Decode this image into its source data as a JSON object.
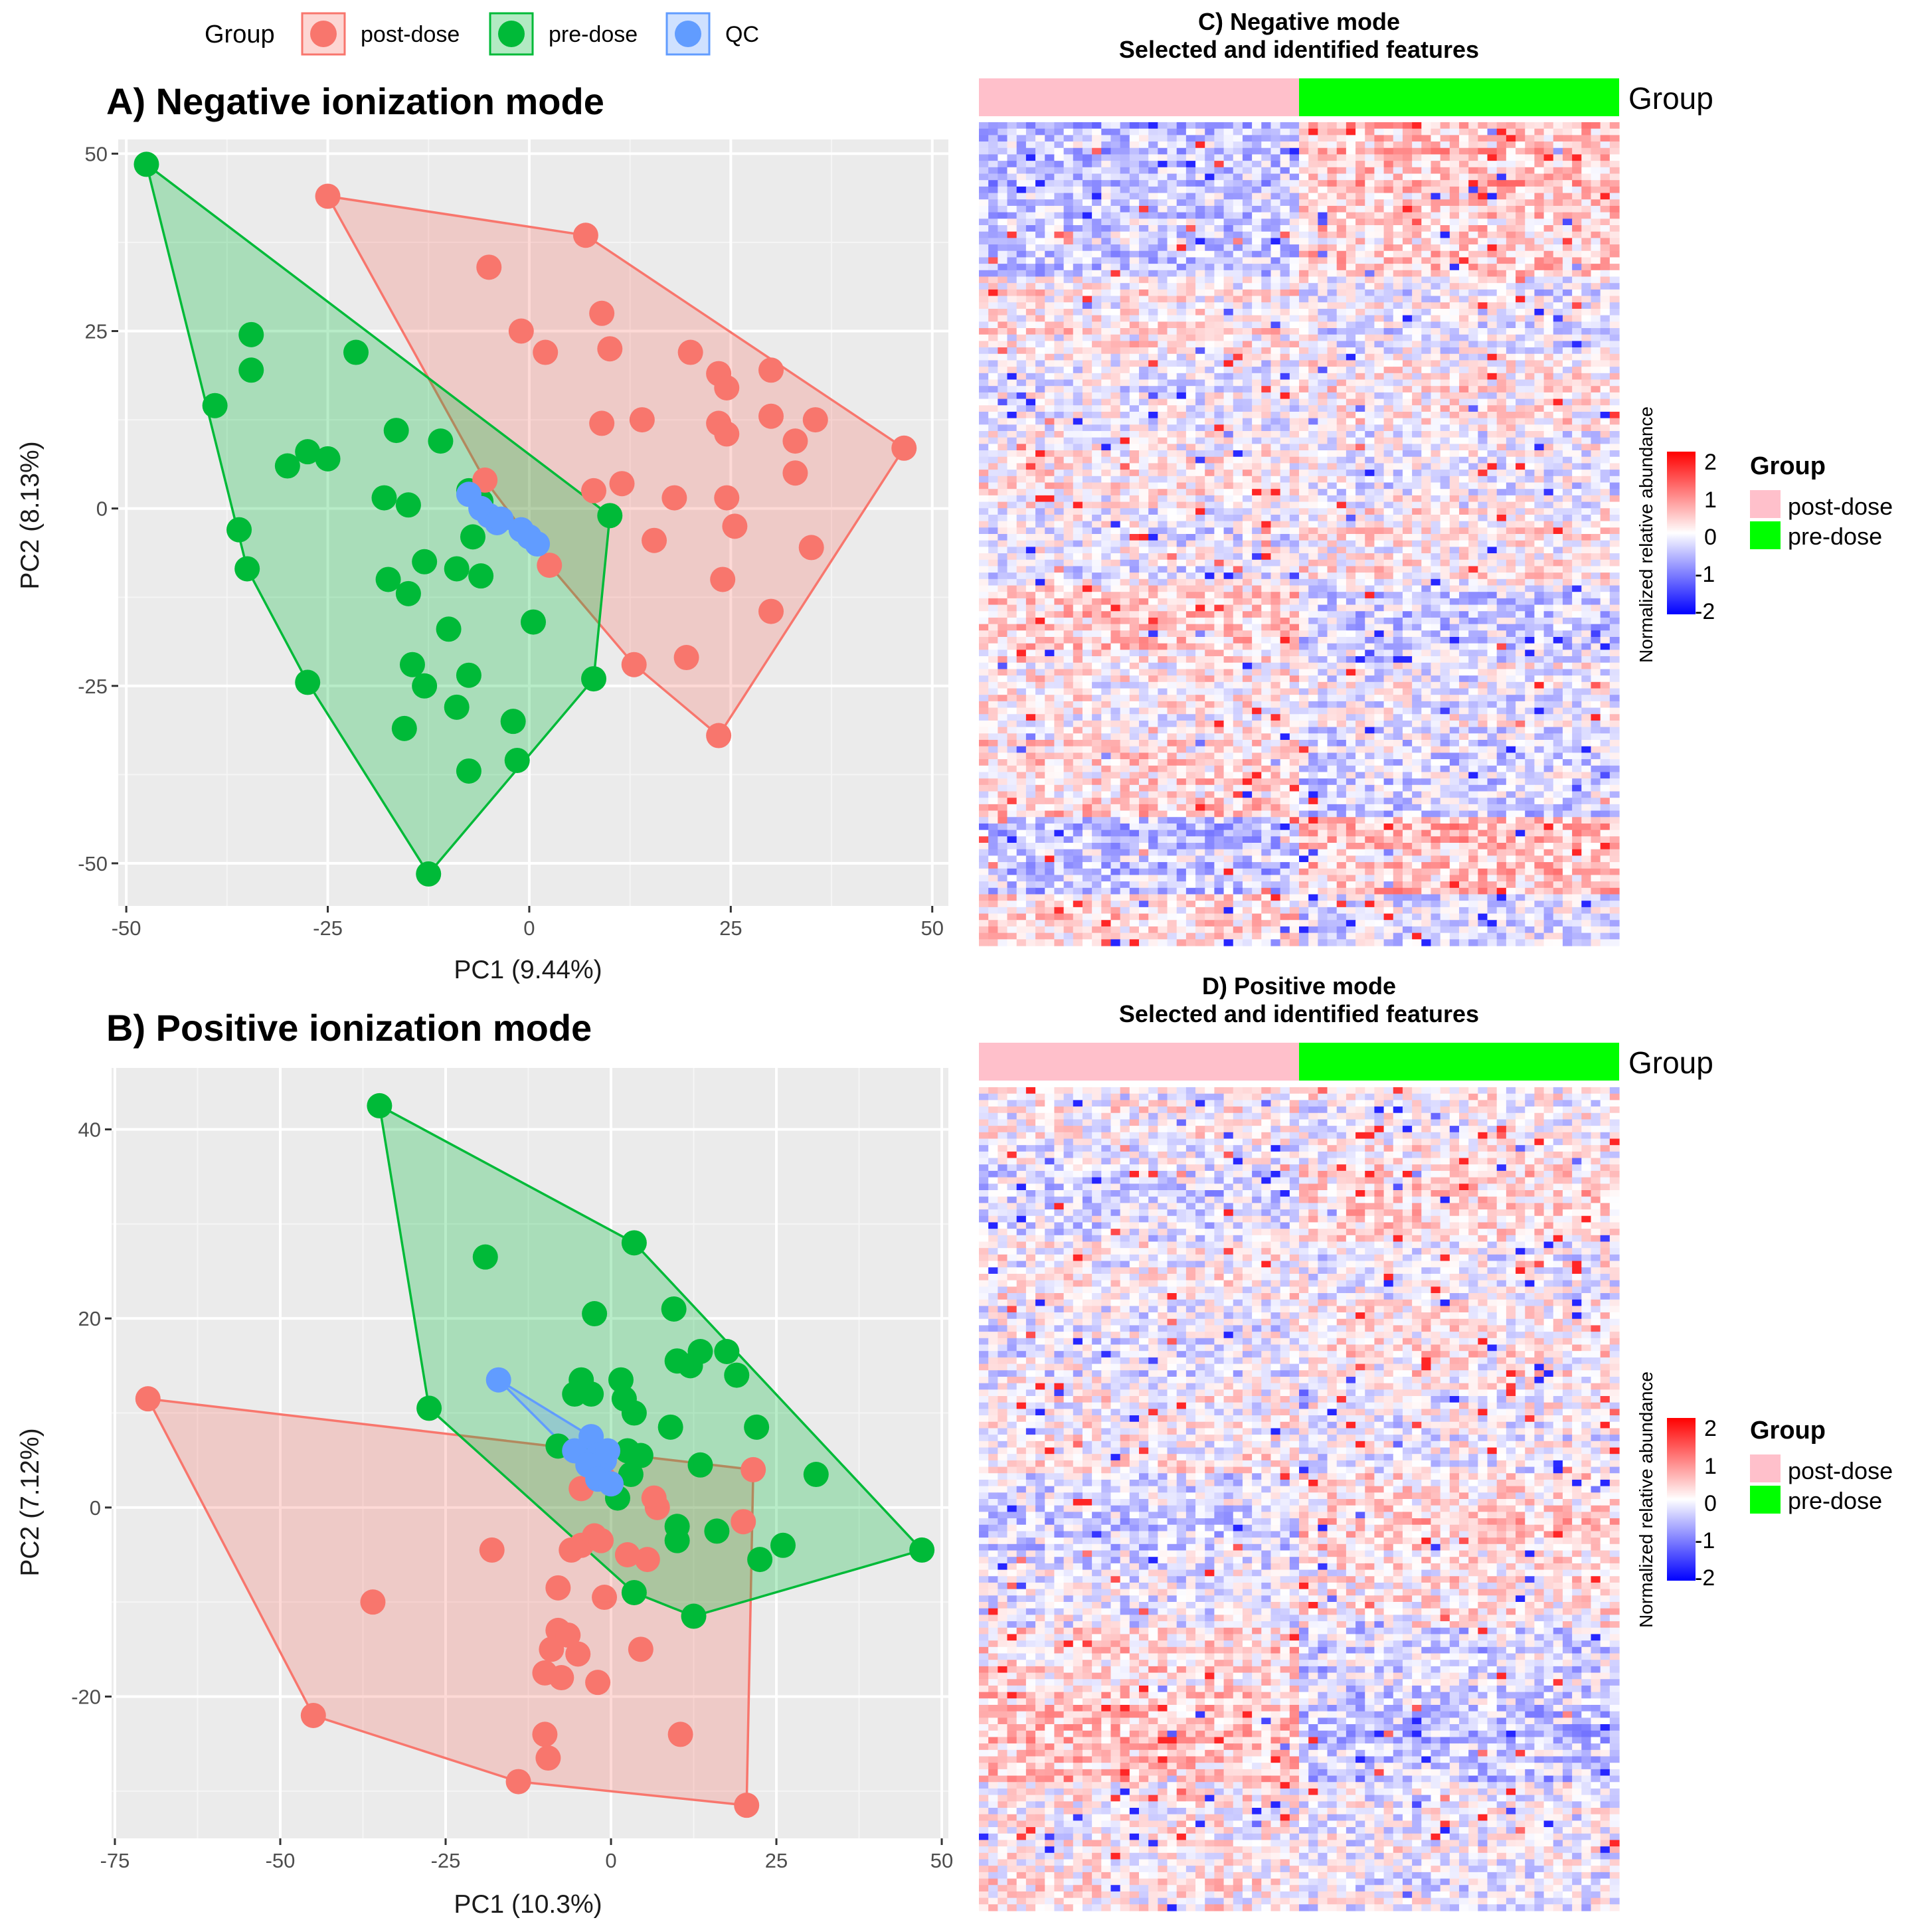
{
  "legend": {
    "title": "Group",
    "items": [
      {
        "label": "post-dose",
        "color": "#F8766D"
      },
      {
        "label": "pre-dose",
        "color": "#00BA38"
      },
      {
        "label": "QC",
        "color": "#619CFF"
      }
    ]
  },
  "chart_data": [
    {
      "id": "A",
      "type": "scatter",
      "title": "A) Negative ionization mode",
      "xlabel": "PC1 (9.44%)",
      "ylabel": "PC2 (8.13%)",
      "xlim": [
        -51,
        52
      ],
      "ylim": [
        -56,
        52
      ],
      "xticks": [
        -50,
        -25,
        0,
        25,
        50
      ],
      "xtick_labels": [
        "-50",
        "-25",
        "0",
        "25",
        "50"
      ],
      "yticks": [
        -50,
        -25,
        0,
        25,
        50
      ],
      "ytick_labels": [
        "-50",
        "-25",
        "0",
        "25",
        "50"
      ],
      "hulls": true,
      "series": [
        {
          "name": "post-dose",
          "color": "#F8766D",
          "points": [
            [
              -25,
              44
            ],
            [
              7,
              38.5
            ],
            [
              -5,
              34
            ],
            [
              9,
              27.5
            ],
            [
              -1,
              25
            ],
            [
              10,
              22.5
            ],
            [
              2,
              22
            ],
            [
              20,
              22
            ],
            [
              23.5,
              19
            ],
            [
              30,
              19.5
            ],
            [
              24.5,
              17
            ],
            [
              14,
              12.5
            ],
            [
              9,
              12
            ],
            [
              23.5,
              12
            ],
            [
              30,
              13
            ],
            [
              35.5,
              12.5
            ],
            [
              24.5,
              10.5
            ],
            [
              33,
              9.5
            ],
            [
              46.5,
              8.5
            ],
            [
              33,
              5
            ],
            [
              11.5,
              3.5
            ],
            [
              8,
              2.5
            ],
            [
              18,
              1.5
            ],
            [
              24.5,
              1.5
            ],
            [
              25.5,
              -2.5
            ],
            [
              -5.5,
              4
            ],
            [
              15.5,
              -4.5
            ],
            [
              35,
              -5.5
            ],
            [
              2.5,
              -8
            ],
            [
              24,
              -10
            ],
            [
              30,
              -14.5
            ],
            [
              13,
              -22
            ],
            [
              19.5,
              -21
            ],
            [
              23.5,
              -32
            ]
          ]
        },
        {
          "name": "pre-dose",
          "color": "#00BA38",
          "points": [
            [
              -47.5,
              48.5
            ],
            [
              -34.5,
              24.5
            ],
            [
              -34.5,
              19.5
            ],
            [
              -21.5,
              22
            ],
            [
              -39,
              14.5
            ],
            [
              -16.5,
              11
            ],
            [
              -11,
              9.5
            ],
            [
              -27.5,
              8
            ],
            [
              -25,
              7
            ],
            [
              -30,
              6
            ],
            [
              -18,
              1.5
            ],
            [
              -15,
              0.5
            ],
            [
              -7.5,
              2.5
            ],
            [
              -6,
              1
            ],
            [
              -36,
              -3
            ],
            [
              -7,
              -4
            ],
            [
              -35,
              -8.5
            ],
            [
              -13,
              -7.5
            ],
            [
              -9,
              -8.5
            ],
            [
              -6,
              -9.5
            ],
            [
              -17.5,
              -10
            ],
            [
              -15,
              -12
            ],
            [
              10,
              -1
            ],
            [
              0.5,
              -16
            ],
            [
              -10,
              -17
            ],
            [
              -14.5,
              -22
            ],
            [
              -13,
              -25
            ],
            [
              -7.5,
              -23.5
            ],
            [
              -9,
              -28
            ],
            [
              -27.5,
              -24.5
            ],
            [
              -15.5,
              -31
            ],
            [
              -2,
              -30
            ],
            [
              8,
              -24
            ],
            [
              -1.5,
              -35.5
            ],
            [
              -7.5,
              -37
            ],
            [
              -12.5,
              -51.5
            ]
          ]
        },
        {
          "name": "QC",
          "color": "#619CFF",
          "points": [
            [
              -7.5,
              2
            ],
            [
              -6,
              0
            ],
            [
              -5,
              -1
            ],
            [
              -4,
              -2
            ],
            [
              -3.5,
              -1.5
            ],
            [
              -1,
              -3
            ],
            [
              0,
              -4
            ],
            [
              1,
              -5
            ]
          ]
        }
      ]
    },
    {
      "id": "B",
      "type": "scatter",
      "title": "B) Positive ionization mode",
      "xlabel": "PC1 (10.3%)",
      "ylabel": "PC2 (7.12%)",
      "xlim": [
        -75.5,
        51
      ],
      "ylim": [
        -35,
        46.5
      ],
      "xticks": [
        -75,
        -50,
        -25,
        0,
        25,
        50
      ],
      "xtick_labels": [
        "-75",
        "-50",
        "-25",
        "0",
        "25",
        "50"
      ],
      "yticks": [
        -20,
        0,
        20,
        40
      ],
      "ytick_labels": [
        "-20",
        "0",
        "20",
        "40"
      ],
      "hulls": true,
      "series": [
        {
          "name": "post-dose",
          "color": "#F8766D",
          "points": [
            [
              -70,
              11.5
            ],
            [
              -45,
              -22
            ],
            [
              -36,
              -10
            ],
            [
              -18,
              -4.5
            ],
            [
              -14,
              -29
            ],
            [
              -10,
              -17.5
            ],
            [
              -10,
              -24
            ],
            [
              -9.5,
              -26.5
            ],
            [
              -9,
              -15
            ],
            [
              -8,
              -13
            ],
            [
              -8,
              -8.5
            ],
            [
              -7.5,
              -18
            ],
            [
              -6.5,
              -13.5
            ],
            [
              -5,
              -15.5
            ],
            [
              -6,
              -4.5
            ],
            [
              -4.5,
              -4
            ],
            [
              -2.5,
              -3
            ],
            [
              -2,
              -18.5
            ],
            [
              -1.5,
              -3.5
            ],
            [
              -1,
              -9.5
            ],
            [
              -1,
              3
            ],
            [
              -4.5,
              2
            ],
            [
              2.5,
              -5
            ],
            [
              4.5,
              -15
            ],
            [
              5.5,
              -5.5
            ],
            [
              6.5,
              1
            ],
            [
              7,
              0
            ],
            [
              10.5,
              -24
            ],
            [
              20,
              -1.5
            ],
            [
              20.5,
              -31.5
            ],
            [
              21.5,
              4
            ]
          ]
        },
        {
          "name": "pre-dose",
          "color": "#00BA38",
          "points": [
            [
              -35,
              42.5
            ],
            [
              3.5,
              28
            ],
            [
              -19,
              26.5
            ],
            [
              -2.5,
              20.5
            ],
            [
              9.5,
              21
            ],
            [
              17.5,
              16.5
            ],
            [
              10,
              15.5
            ],
            [
              12,
              15
            ],
            [
              13.5,
              16.5
            ],
            [
              19,
              14
            ],
            [
              -4.5,
              13.5
            ],
            [
              -5.5,
              12
            ],
            [
              -3,
              12
            ],
            [
              1.5,
              13.5
            ],
            [
              2,
              11.5
            ],
            [
              3.5,
              10
            ],
            [
              -27.5,
              10.5
            ],
            [
              9,
              8.5
            ],
            [
              22,
              8.5
            ],
            [
              -8,
              6.5
            ],
            [
              -3,
              6.5
            ],
            [
              -1.5,
              5.5
            ],
            [
              2.5,
              6
            ],
            [
              4.5,
              5.5
            ],
            [
              3,
              3.5
            ],
            [
              13.5,
              4.5
            ],
            [
              31,
              3.5
            ],
            [
              1,
              1
            ],
            [
              10,
              -2
            ],
            [
              10,
              -3.5
            ],
            [
              16,
              -2.5
            ],
            [
              22.5,
              -5.5
            ],
            [
              26,
              -4
            ],
            [
              3.5,
              -9
            ],
            [
              12.5,
              -11.5
            ],
            [
              47,
              -4.5
            ]
          ]
        },
        {
          "name": "QC",
          "color": "#619CFF",
          "points": [
            [
              -17,
              13.5
            ],
            [
              -5.5,
              6
            ],
            [
              -3,
              7.5
            ],
            [
              -2,
              5.5
            ],
            [
              -1,
              5
            ],
            [
              -3.5,
              4.5
            ],
            [
              -2,
              3
            ],
            [
              -0.5,
              6
            ],
            [
              0,
              2.5
            ]
          ]
        }
      ]
    },
    {
      "id": "C",
      "type": "heatmap",
      "title": [
        "C) Negative mode",
        "Selected and identified features"
      ],
      "annotation_label": "Group",
      "columns": {
        "post-dose": 34,
        "pre-dose": 34
      },
      "rows": 128,
      "scale": {
        "min": -2,
        "max": 2,
        "low": "#0000FF",
        "mid": "#FFFFFF",
        "high": "#FF0000"
      },
      "colorbar_title": "Normalized relative abundance",
      "colorbar_ticks": [
        "2",
        "1",
        "0",
        "-1",
        "-2"
      ],
      "legend_title": "Group",
      "legend_items": [
        {
          "label": "post-dose",
          "color": "#FFC0CB"
        },
        {
          "label": "pre-dose",
          "color": "#00FF00"
        }
      ]
    },
    {
      "id": "D",
      "type": "heatmap",
      "title": [
        "D) Positive mode",
        "Selected and identified features"
      ],
      "annotation_label": "Group",
      "columns": {
        "post-dose": 34,
        "pre-dose": 34
      },
      "rows": 128,
      "scale": {
        "min": -2,
        "max": 2,
        "low": "#0000FF",
        "mid": "#FFFFFF",
        "high": "#FF0000"
      },
      "colorbar_title": "Normalized relative abundance",
      "colorbar_ticks": [
        "2",
        "1",
        "0",
        "-1",
        "-2"
      ],
      "legend_title": "Group",
      "legend_items": [
        {
          "label": "post-dose",
          "color": "#FFC0CB"
        },
        {
          "label": "pre-dose",
          "color": "#00FF00"
        }
      ]
    }
  ]
}
